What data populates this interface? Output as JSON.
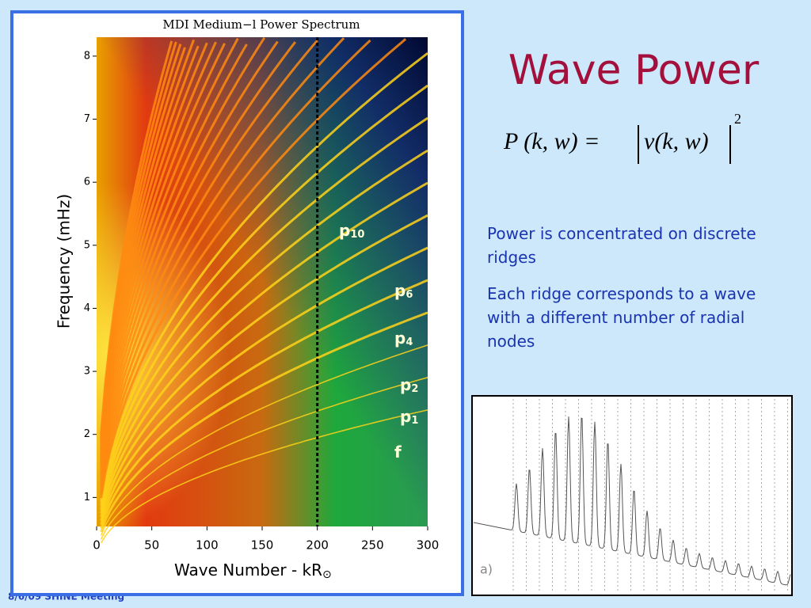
{
  "slide": {
    "title": "Wave Power",
    "formula": {
      "lhs": "P (k, w) =",
      "rhs": "v(k, w)",
      "exponent": "2"
    },
    "bullets": [
      "Power is concentrated on discrete ridges",
      "Each ridge corresponds to a wave with a different number of radial nodes"
    ],
    "footer": "8/6/09 SHINE Meeting"
  },
  "spectrum": {
    "title": "MDI Medium−l Power Spectrum",
    "xlabel": "Wave Number - kR",
    "xlabel_sub": "⊙",
    "ylabel": "Frequency (mHz)",
    "xlim": [
      0,
      300
    ],
    "xticks": [
      0,
      50,
      100,
      150,
      200,
      250,
      300
    ],
    "ylim": [
      0.54,
      8.3
    ],
    "yticks": [
      1,
      2,
      3,
      4,
      5,
      6,
      7,
      8
    ],
    "cut_wavenumber": 200,
    "ridge_labels": [
      {
        "letter": "p",
        "sub": "10"
      },
      {
        "letter": "p",
        "sub": "6"
      },
      {
        "letter": "p",
        "sub": "4"
      },
      {
        "letter": "p",
        "sub": "2"
      },
      {
        "letter": "p",
        "sub": "1"
      },
      {
        "letter": "f"
      }
    ]
  },
  "inset": {
    "label": "a)"
  }
}
